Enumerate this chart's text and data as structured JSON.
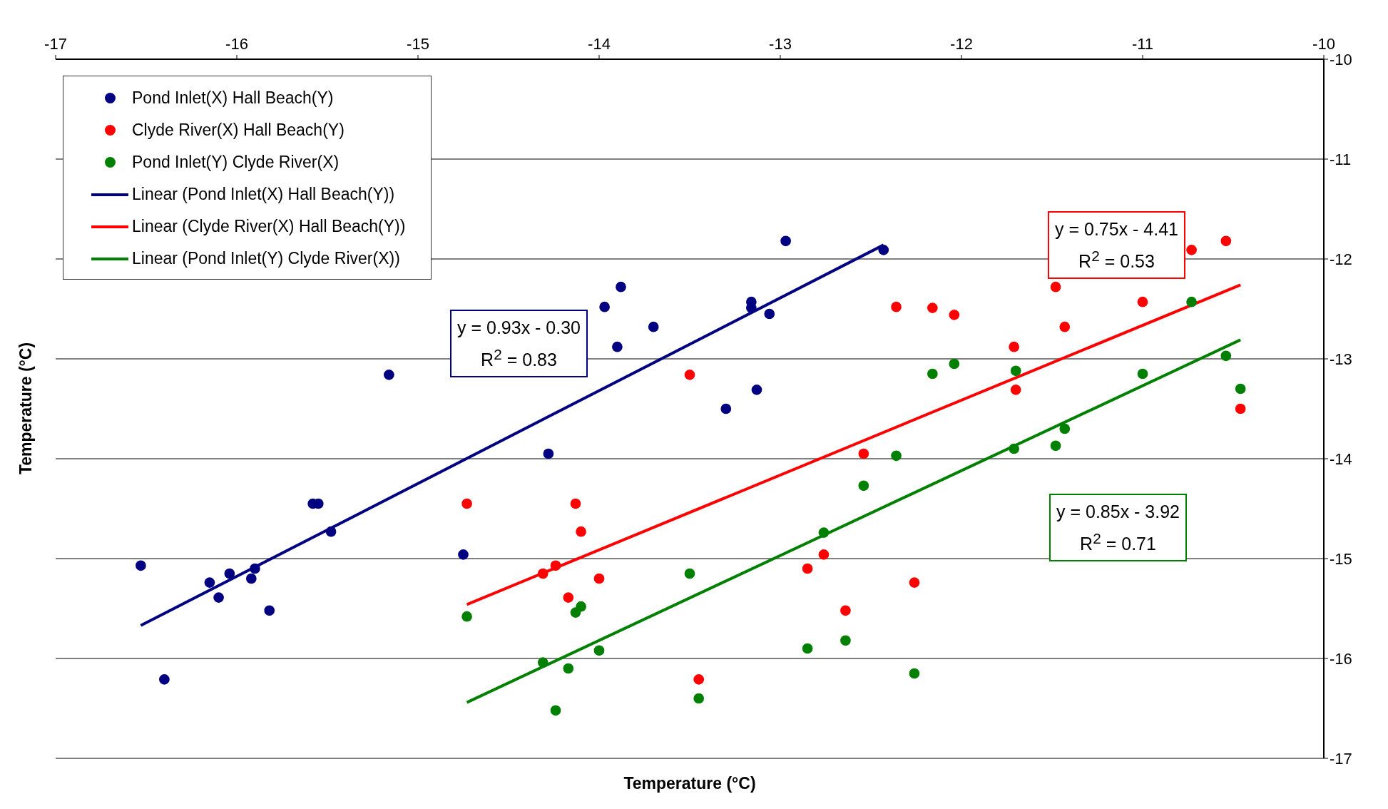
{
  "chart_data": {
    "type": "scatter",
    "xlabel": "Temperature (°C)",
    "ylabel": "Temperature (°C)",
    "xlim": [
      -17,
      -10
    ],
    "xticks": [
      -17,
      -16,
      -15,
      -14,
      -13,
      -12,
      -11,
      -10
    ],
    "ylim": [
      -17,
      -10
    ],
    "yticks": [
      -17,
      -16,
      -15,
      -14,
      -13,
      -12,
      -11,
      -10
    ],
    "grid": "y",
    "legend": "top left",
    "line_style": "solid",
    "series": [
      {
        "name": "Pond Inlet(X) Hall Beach(Y)",
        "color": "#000080",
        "marker": "circle",
        "x": [
          -16.53,
          -16.4,
          -16.15,
          -16.1,
          -16.04,
          -15.92,
          -15.9,
          -15.82,
          -15.58,
          -15.55,
          -15.48,
          -15.16,
          -14.75,
          -14.28,
          -13.97,
          -13.9,
          -13.88,
          -13.7,
          -13.3,
          -13.16,
          -13.16,
          -13.13,
          -13.06,
          -12.97,
          -12.43
        ],
        "values": [
          -15.07,
          -16.21,
          -15.24,
          -15.39,
          -15.15,
          -15.2,
          -15.1,
          -15.52,
          -14.45,
          -14.45,
          -14.73,
          -13.16,
          -14.96,
          -13.95,
          -12.48,
          -12.88,
          -12.28,
          -12.68,
          -13.5,
          -12.43,
          -12.49,
          -13.31,
          -12.55,
          -11.82,
          -11.91
        ]
      },
      {
        "name": "Clyde River(X) Hall Beach(Y)",
        "color": "#ff0000",
        "marker": "circle",
        "x": [
          -14.73,
          -14.31,
          -14.24,
          -14.17,
          -14.13,
          -14.1,
          -14.0,
          -13.5,
          -13.45,
          -12.85,
          -12.76,
          -12.64,
          -12.54,
          -12.36,
          -12.16,
          -12.04,
          -12.26,
          -11.71,
          -11.7,
          -11.48,
          -11.43,
          -11.0,
          -10.73,
          -10.54,
          -10.46
        ],
        "values": [
          -14.45,
          -15.15,
          -15.07,
          -15.39,
          -14.45,
          -14.73,
          -15.2,
          -13.16,
          -16.21,
          -15.1,
          -14.96,
          -15.52,
          -13.95,
          -12.48,
          -12.49,
          -12.56,
          -15.24,
          -12.88,
          -13.31,
          -12.28,
          -12.68,
          -12.43,
          -11.91,
          -11.82,
          -13.5
        ]
      },
      {
        "name": "Pond Inlet(Y) Clyde River(X)",
        "color": "#008000",
        "marker": "circle",
        "x": [
          -14.73,
          -14.31,
          -14.24,
          -14.17,
          -14.13,
          -14.1,
          -14.0,
          -13.5,
          -13.45,
          -12.85,
          -12.76,
          -12.64,
          -12.54,
          -12.36,
          -12.26,
          -12.16,
          -12.04,
          -11.71,
          -11.7,
          -11.48,
          -11.43,
          -11.0,
          -10.73,
          -10.54,
          -10.46
        ],
        "values": [
          -15.58,
          -16.04,
          -16.52,
          -16.1,
          -15.54,
          -15.48,
          -15.92,
          -15.15,
          -16.4,
          -15.9,
          -14.74,
          -15.82,
          -14.27,
          -13.97,
          -16.15,
          -13.15,
          -13.05,
          -13.9,
          -13.12,
          -13.87,
          -13.7,
          -13.15,
          -12.43,
          -12.97,
          -13.3
        ]
      },
      {
        "name": "Linear (Pond Inlet(X) Hall Beach(Y))",
        "color": "#000080",
        "type": "line",
        "marker": "none",
        "x": [
          -16.53,
          -12.43
        ],
        "values": [
          -15.67,
          -11.86
        ]
      },
      {
        "name": "Linear (Clyde River(X) Hall Beach(Y))",
        "color": "#ff0000",
        "type": "line",
        "marker": "none",
        "x": [
          -14.73,
          -10.46
        ],
        "values": [
          -15.46,
          -12.26
        ]
      },
      {
        "name": "Linear (Pond Inlet(Y) Clyde River(X))",
        "color": "#008000",
        "type": "line",
        "marker": "none",
        "x": [
          -14.73,
          -10.46
        ],
        "values": [
          -16.44,
          -12.81
        ]
      }
    ],
    "annotations": [
      "y = 0.93x - 0.30\nR$^{2}$ = 0.83",
      "y = 0.75x - 4.41\nR$^{2}$ = 0.53",
      "y = 0.85x - 3.92\nR$^{2}$ = 0.71"
    ]
  }
}
